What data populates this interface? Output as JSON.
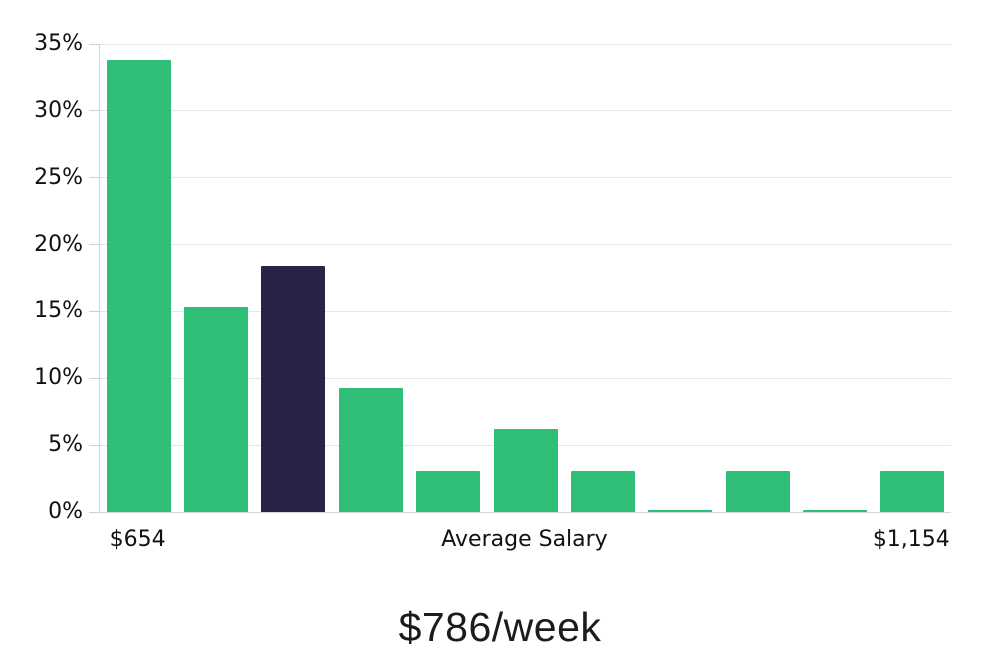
{
  "chart_data": {
    "type": "bar",
    "title": "$786/week",
    "values": [
      33.8,
      15.3,
      18.4,
      9.3,
      3.1,
      6.2,
      3.1,
      0.15,
      3.1,
      0.15,
      3.1
    ],
    "highlighted_index": 2,
    "ylim": [
      0,
      35
    ],
    "y_tick_step": 5,
    "y_tick_labels": [
      "0%",
      "5%",
      "10%",
      "15%",
      "20%",
      "25%",
      "30%",
      "35%"
    ],
    "x_axis_labels": [
      {
        "text": "$654",
        "bar_index": 0
      },
      {
        "text": "Average Salary",
        "bar_index": 5
      },
      {
        "text": "$1,154",
        "bar_index": 10
      }
    ],
    "grid": true,
    "legend_position": "none",
    "colors": {
      "bar": "#2fbe78",
      "highlight_bar": "#282349",
      "gridline": "#e6e6e6",
      "axis": "#d6d6d6",
      "tick_text": "#111111",
      "title_text": "#1c1c1c"
    }
  }
}
